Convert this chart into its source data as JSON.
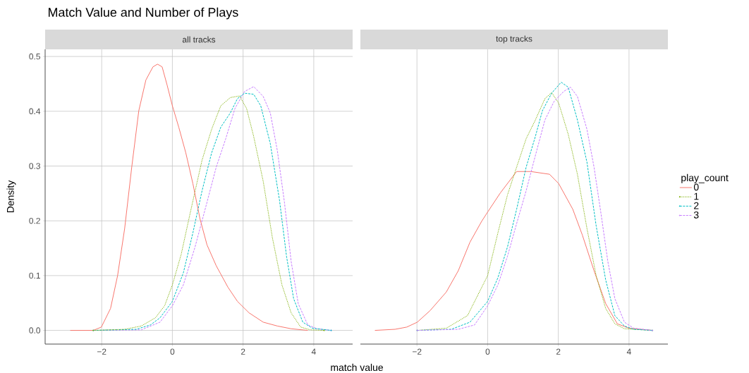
{
  "chart_data": [
    {
      "type": "line",
      "title": "Match Value and Number of Plays",
      "subtitle": "all tracks",
      "xlabel": "match value",
      "ylabel": "Density",
      "xlim": [
        -3.6,
        5.1
      ],
      "ylim": [
        -0.025,
        0.513
      ],
      "xticks": [
        {
          "value": -2,
          "label": "−2"
        },
        0,
        2,
        4
      ],
      "yticks": [
        {
          "value": 0,
          "label": "0.0"
        },
        0.1,
        0.2,
        0.3,
        0.4,
        0.5
      ],
      "grid": true,
      "legend": false,
      "series": [
        {
          "color": "#f8766d",
          "line_style": "solid",
          "x": [
            -2.89,
            -2.24,
            -2.01,
            -1.75,
            -1.55,
            -1.35,
            -1.15,
            -0.95,
            -0.75,
            -0.55,
            -0.42,
            -0.29,
            -0.15,
            0,
            0.18,
            0.38,
            0.58,
            0.78,
            0.98,
            1.24,
            1.57,
            1.84,
            2.17,
            2.57,
            2.97,
            3.36,
            3.83
          ],
          "values": [
            0,
            0,
            0.006,
            0.04,
            0.1,
            0.186,
            0.298,
            0.401,
            0.457,
            0.481,
            0.486,
            0.481,
            0.448,
            0.41,
            0.371,
            0.324,
            0.268,
            0.204,
            0.156,
            0.118,
            0.079,
            0.053,
            0.032,
            0.015,
            0.008,
            0.003,
            0
          ]
        },
        {
          "color": "#7cae00",
          "line_style": "dotted",
          "x": [
            -2.24,
            -1.35,
            -0.88,
            -0.48,
            -0.22,
            0,
            0.25,
            0.51,
            0.84,
            1.11,
            1.37,
            1.64,
            1.9,
            2.1,
            2.3,
            2.57,
            2.83,
            3.1,
            3.36,
            3.63,
            3.9,
            4.29
          ],
          "values": [
            0,
            0.002,
            0.008,
            0.023,
            0.045,
            0.083,
            0.139,
            0.216,
            0.311,
            0.367,
            0.41,
            0.425,
            0.428,
            0.405,
            0.354,
            0.272,
            0.169,
            0.083,
            0.032,
            0.006,
            0.001,
            0
          ]
        },
        {
          "color": "#00bfc4",
          "line_style": "dashed",
          "x": [
            -2.24,
            -1.02,
            -0.62,
            -0.35,
            0,
            0.31,
            0.58,
            0.84,
            1.11,
            1.37,
            1.64,
            1.84,
            2.04,
            2.3,
            2.5,
            2.77,
            3.03,
            3.23,
            3.43,
            3.69,
            3.96,
            4.49
          ],
          "values": [
            0,
            0.002,
            0.01,
            0.023,
            0.053,
            0.105,
            0.178,
            0.255,
            0.324,
            0.371,
            0.397,
            0.423,
            0.433,
            0.431,
            0.41,
            0.341,
            0.238,
            0.135,
            0.058,
            0.015,
            0.004,
            0
          ]
        },
        {
          "color": "#c77cff",
          "line_style": "dashed",
          "x": [
            -2.24,
            -0.88,
            -0.35,
            0,
            0.31,
            0.64,
            0.98,
            1.24,
            1.51,
            1.77,
            2.04,
            2.3,
            2.57,
            2.77,
            2.97,
            3.17,
            3.36,
            3.56,
            3.83,
            4.09,
            4.49
          ],
          "values": [
            0,
            0.001,
            0.015,
            0.045,
            0.083,
            0.152,
            0.234,
            0.298,
            0.35,
            0.405,
            0.436,
            0.445,
            0.427,
            0.397,
            0.328,
            0.234,
            0.126,
            0.049,
            0.01,
            0.003,
            0
          ]
        }
      ]
    },
    {
      "type": "line",
      "subtitle": "top tracks",
      "legend_title": "play_count",
      "xlim": [
        -3.6,
        5.1
      ],
      "ylim": [
        -0.025,
        0.513
      ],
      "xticks": [
        {
          "value": -2,
          "label": "−2"
        },
        0,
        2,
        4
      ],
      "yticks": [
        0,
        0.1,
        0.2,
        0.3,
        0.4,
        0.5
      ],
      "tick_labels": "x",
      "grid": true,
      "legend": "right",
      "series": [
        {
          "name": "0",
          "color": "#f8766d",
          "line_style": "solid",
          "x": [
            -3.19,
            -2.62,
            -2.29,
            -1.99,
            -1.63,
            -1.17,
            -0.83,
            -0.5,
            -0.17,
            0,
            0.36,
            0.82,
            1.22,
            1.75,
            2.01,
            2.41,
            2.68,
            3.01,
            3.34,
            3.67,
            4.0,
            4.66
          ],
          "values": [
            0,
            0.002,
            0.006,
            0.015,
            0.036,
            0.07,
            0.109,
            0.161,
            0.199,
            0.216,
            0.251,
            0.29,
            0.29,
            0.285,
            0.268,
            0.221,
            0.174,
            0.109,
            0.049,
            0.012,
            0.004,
            0
          ]
        },
        {
          "name": "1",
          "color": "#7cae00",
          "line_style": "dotted",
          "x": [
            -1.99,
            -1.17,
            -0.57,
            0,
            0.29,
            0.56,
            0.82,
            1.09,
            1.35,
            1.62,
            1.81,
            2.01,
            2.28,
            2.54,
            2.81,
            3.07,
            3.34,
            3.6,
            3.87,
            4.66
          ],
          "values": [
            0,
            0.004,
            0.027,
            0.1,
            0.178,
            0.247,
            0.298,
            0.35,
            0.384,
            0.423,
            0.434,
            0.415,
            0.358,
            0.285,
            0.186,
            0.1,
            0.04,
            0.012,
            0.003,
            0
          ]
        },
        {
          "name": "2",
          "color": "#00bfc4",
          "line_style": "dashed",
          "x": [
            -1.99,
            -1.03,
            -0.5,
            0,
            0.29,
            0.56,
            0.82,
            1.09,
            1.35,
            1.55,
            1.81,
            2.08,
            2.28,
            2.54,
            2.81,
            3.07,
            3.34,
            3.6,
            3.87,
            4.13,
            4.66
          ],
          "values": [
            0,
            0.002,
            0.015,
            0.053,
            0.096,
            0.152,
            0.221,
            0.298,
            0.354,
            0.401,
            0.433,
            0.453,
            0.444,
            0.384,
            0.307,
            0.191,
            0.092,
            0.027,
            0.008,
            0.002,
            0
          ]
        },
        {
          "name": "3",
          "color": "#c77cff",
          "line_style": "dashed",
          "x": [
            -1.99,
            -0.83,
            -0.37,
            0,
            0.29,
            0.56,
            0.82,
            1.09,
            1.35,
            1.62,
            1.88,
            2.15,
            2.34,
            2.54,
            2.81,
            3.01,
            3.21,
            3.4,
            3.6,
            3.87,
            4.13,
            4.66
          ],
          "values": [
            0,
            0.002,
            0.01,
            0.045,
            0.083,
            0.135,
            0.195,
            0.255,
            0.319,
            0.384,
            0.418,
            0.436,
            0.444,
            0.427,
            0.367,
            0.298,
            0.212,
            0.126,
            0.058,
            0.015,
            0.004,
            0
          ]
        }
      ]
    }
  ]
}
